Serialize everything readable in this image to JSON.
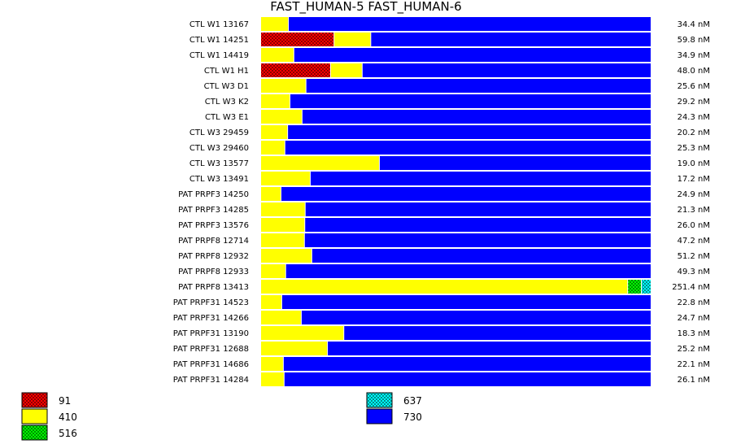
{
  "chart_data": {
    "type": "bar",
    "orientation": "horizontal",
    "stacked": true,
    "normalized": true,
    "title": "FAST_HUMAN-5  FAST_HUMAN-6",
    "categories": [
      "CTL W1 13167",
      "CTL W1 14251",
      "CTL W1 14419",
      "CTL W1 H1",
      "CTL W3 D1",
      "CTL W3 K2",
      "CTL W3 E1",
      "CTL W3 29459",
      "CTL W3 29460",
      "CTL W3 13577",
      "CTL W3 13491",
      "PAT PRPF3 14250",
      "PAT PRPF3 14285",
      "PAT PRPF3 13576",
      "PAT PRPF8 12714",
      "PAT PRPF8 12932",
      "PAT PRPF8 12933",
      "PAT PRPF8 13413",
      "PAT PRPF31 14523",
      "PAT PRPF31 14266",
      "PAT PRPF31 13190",
      "PAT PRPF31 12688",
      "PAT PRPF31 14686",
      "PAT PRPF31 14284"
    ],
    "totals": [
      "34.4 nM",
      "59.8 nM",
      "34.9 nM",
      "48.0 nM",
      "25.6 nM",
      "29.2 nM",
      "24.3 nM",
      "20.2 nM",
      "25.3 nM",
      "19.0 nM",
      "17.2 nM",
      "24.9 nM",
      "21.3 nM",
      "26.0 nM",
      "47.2 nM",
      "51.2 nM",
      "49.3 nM",
      "251.4 nM",
      "22.8 nM",
      "24.7 nM",
      "18.3 nM",
      "25.2 nM",
      "22.1 nM",
      "26.1 nM"
    ],
    "series": [
      {
        "name": "91",
        "color": "#ff0000",
        "pattern": "checker",
        "values": [
          0,
          0.188,
          0,
          0.179,
          0,
          0,
          0,
          0,
          0,
          0,
          0,
          0,
          0,
          0,
          0,
          0,
          0,
          0,
          0,
          0,
          0,
          0,
          0,
          0
        ]
      },
      {
        "name": "410",
        "color": "#ffff00",
        "pattern": "solid",
        "values": [
          0.071,
          0.094,
          0.085,
          0.081,
          0.116,
          0.075,
          0.106,
          0.069,
          0.062,
          0.304,
          0.127,
          0.052,
          0.114,
          0.113,
          0.112,
          0.131,
          0.064,
          0.94,
          0.054,
          0.104,
          0.213,
          0.171,
          0.058,
          0.06
        ]
      },
      {
        "name": "516",
        "color": "#00ff00",
        "pattern": "checker",
        "values": [
          0,
          0,
          0,
          0,
          0,
          0,
          0,
          0,
          0,
          0,
          0,
          0,
          0,
          0,
          0,
          0,
          0,
          0.035,
          0,
          0,
          0,
          0,
          0,
          0
        ]
      },
      {
        "name": "637",
        "color": "#00ffff",
        "pattern": "checker",
        "values": [
          0,
          0,
          0,
          0,
          0,
          0,
          0,
          0,
          0,
          0,
          0,
          0,
          0,
          0,
          0,
          0,
          0,
          0.025,
          0,
          0,
          0,
          0,
          0,
          0
        ]
      },
      {
        "name": "730",
        "color": "#0000ff",
        "pattern": "solid",
        "values": [
          0.929,
          0.718,
          0.915,
          0.74,
          0.884,
          0.925,
          0.894,
          0.931,
          0.938,
          0.696,
          0.873,
          0.948,
          0.886,
          0.887,
          0.888,
          0.869,
          0.936,
          0,
          0.946,
          0.896,
          0.787,
          0.829,
          0.942,
          0.94
        ]
      }
    ],
    "legend_columns": [
      [
        "91",
        "410",
        "516"
      ],
      [
        "637",
        "730"
      ]
    ],
    "legend_position": "bottom",
    "xlim": [
      0,
      1
    ],
    "grid": false
  }
}
